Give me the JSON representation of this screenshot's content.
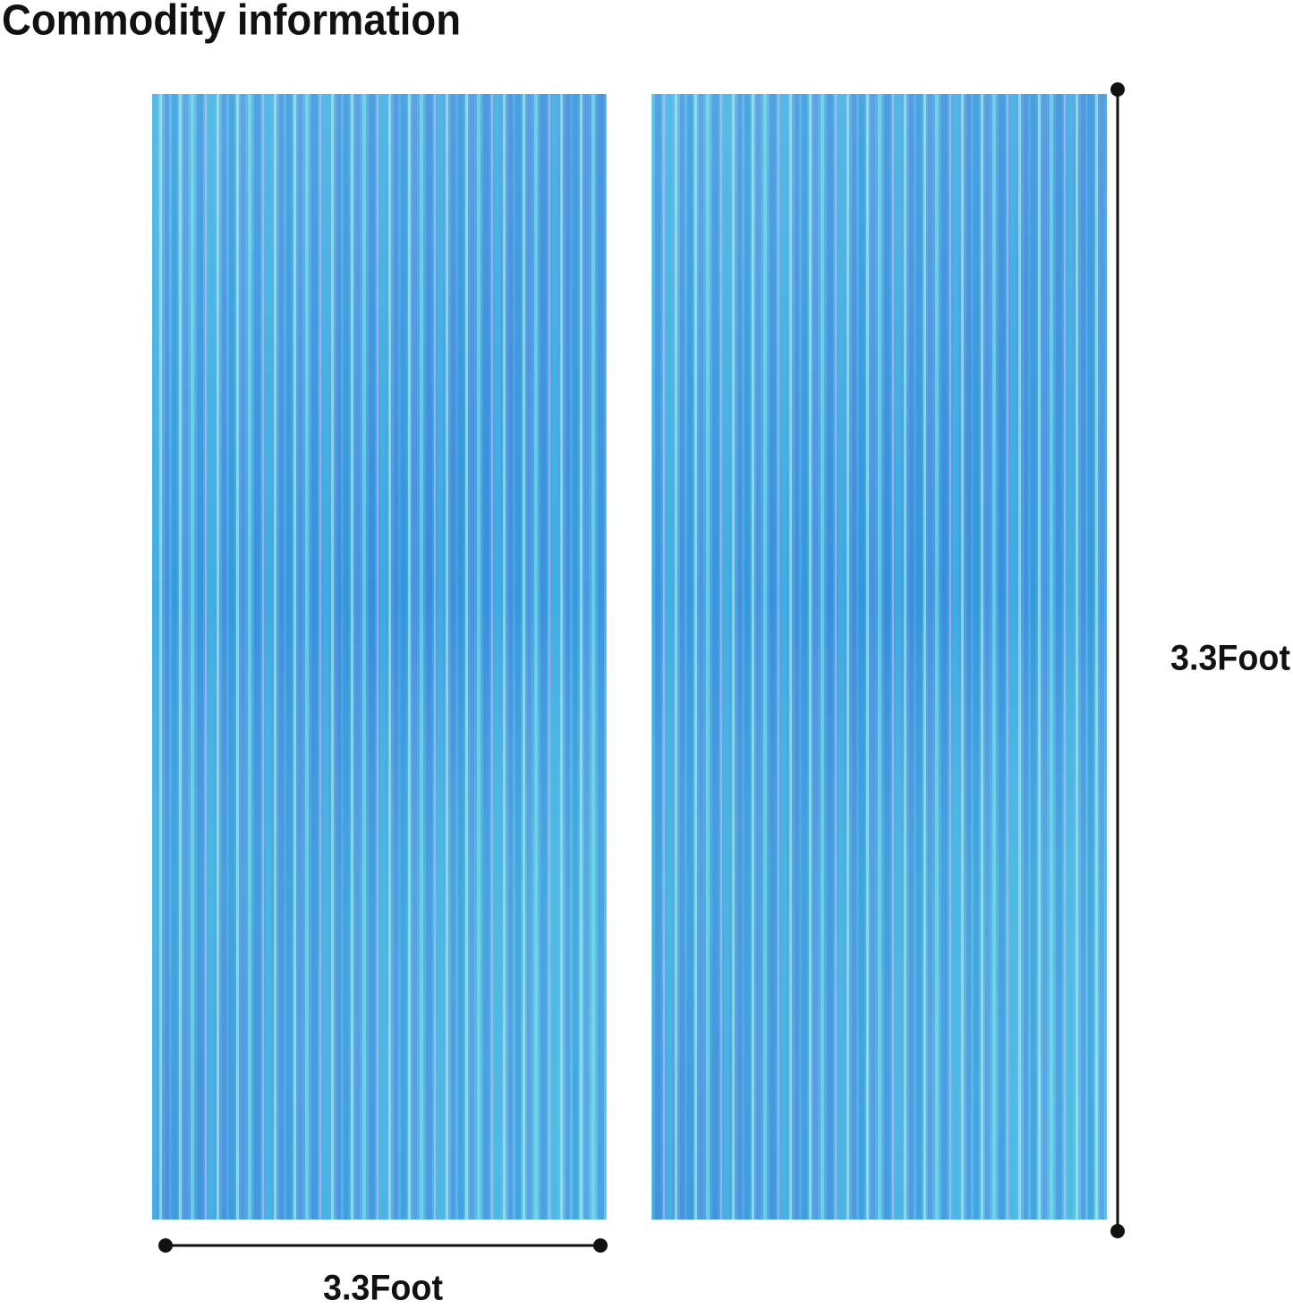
{
  "header": {
    "title": "Commodity information"
  },
  "dimensions": {
    "width": "3.3Foot",
    "height": "3.3Foot"
  }
}
